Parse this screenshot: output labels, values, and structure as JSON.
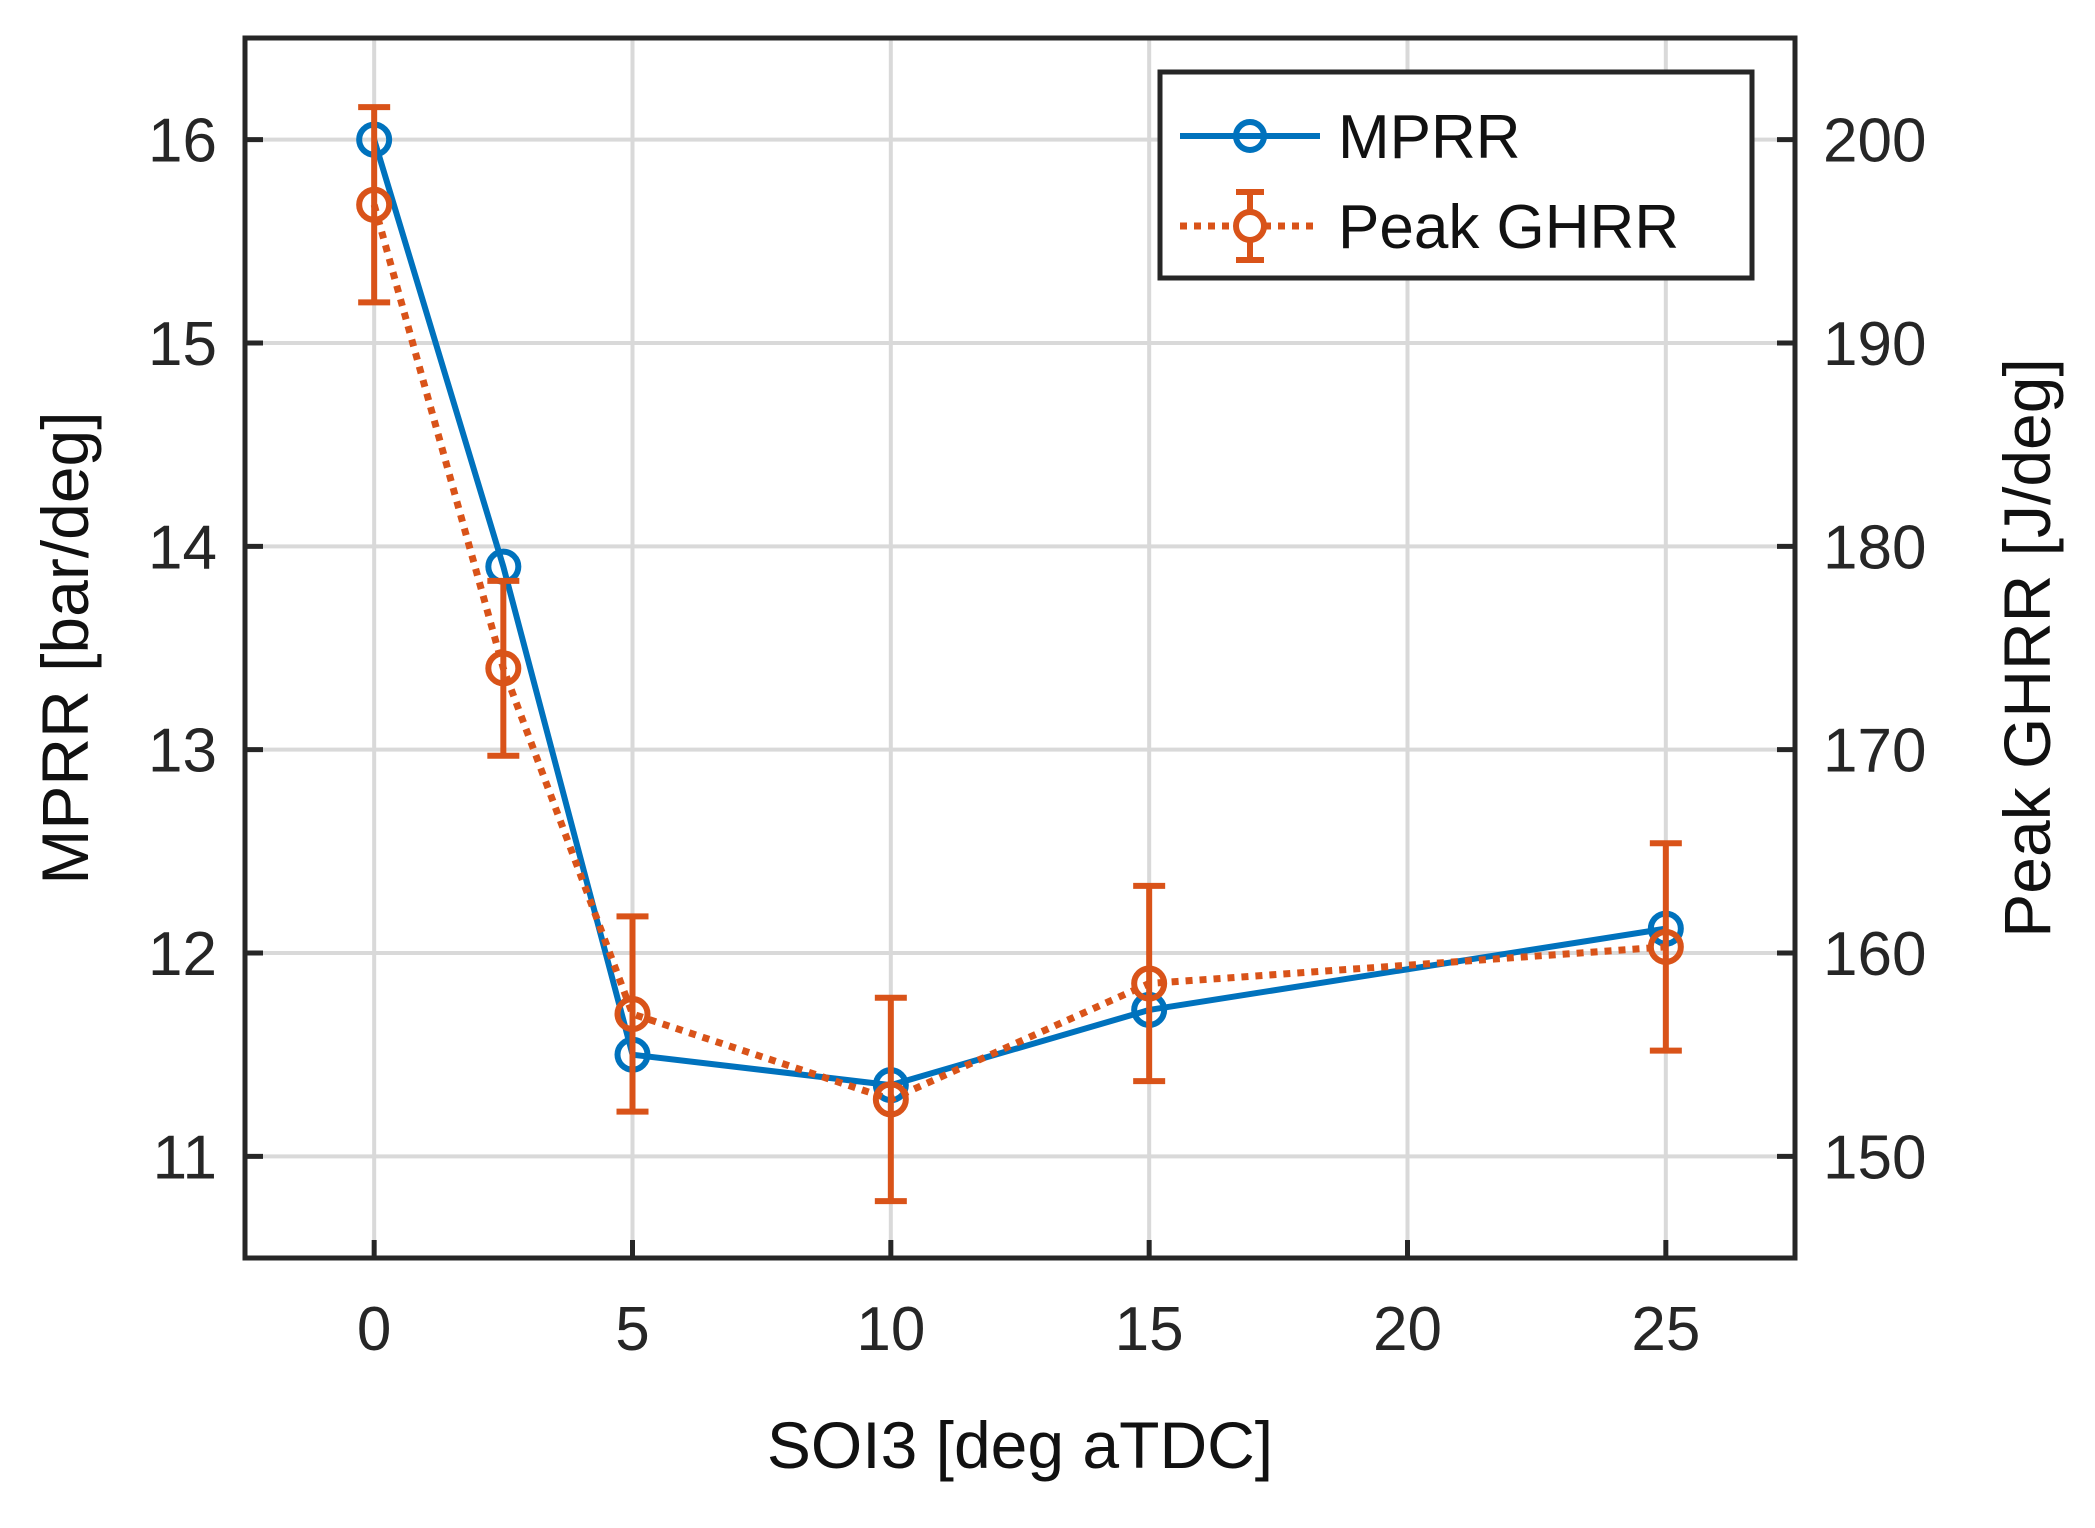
{
  "chart_data": {
    "type": "line",
    "title": "",
    "xlabel": "SOI3 [deg aTDC]",
    "ylabel_left": "MPRR [bar/deg]",
    "ylabel_right": "Peak GHRR [J/deg]",
    "xlim": [
      -2.5,
      27.5
    ],
    "ylim_left": [
      10.5,
      16.5
    ],
    "ylim_right": [
      145,
      205
    ],
    "x_ticks": [
      0,
      5,
      10,
      15,
      20,
      25
    ],
    "y_ticks_left": [
      11,
      12,
      13,
      14,
      15,
      16
    ],
    "y_ticks_right": [
      150,
      160,
      170,
      180,
      190,
      200
    ],
    "grid": true,
    "legend_position": "top-right",
    "series": [
      {
        "name": "MPRR",
        "axis": "left",
        "color": "#0072BD",
        "line_style": "solid",
        "marker": "circle",
        "x": [
          0,
          2.5,
          5,
          10,
          15,
          25
        ],
        "values": [
          16.0,
          13.9,
          11.5,
          11.35,
          11.72,
          12.12
        ]
      },
      {
        "name": "Peak GHRR",
        "axis": "right",
        "color": "#D95319",
        "line_style": "dotted",
        "marker": "circle",
        "x": [
          0,
          2.5,
          5,
          10,
          15,
          25
        ],
        "values": [
          196.8,
          174.0,
          157.0,
          152.8,
          158.5,
          160.3
        ],
        "error": [
          4.8,
          4.3,
          4.8,
          5.0,
          4.8,
          5.1
        ]
      }
    ]
  }
}
